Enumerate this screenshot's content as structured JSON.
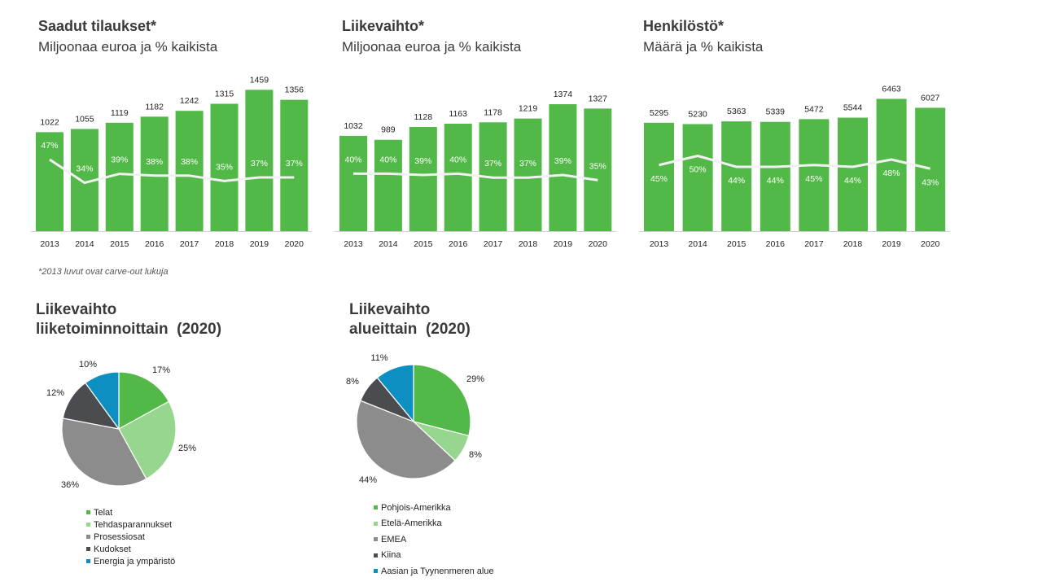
{
  "bar_charts": [
    {
      "title": "Saadut tilaukset*",
      "subtitle": "Miljoonaa euroa ja % kaikista"
    },
    {
      "title": "Liikevaihto*",
      "subtitle": "Miljoonaa euroa ja % kaikista"
    },
    {
      "title": "Henkilöstö*",
      "subtitle": "Määrä ja % kaikista"
    }
  ],
  "footnote": "*2013 luvut ovat carve-out lukuja",
  "pie_charts": [
    {
      "title_line1": "Liikevaihto",
      "title_line2": "liiketoiminnoittain  (2020)"
    },
    {
      "title_line1": "Liikevaihto",
      "title_line2": "alueittain  (2020)"
    }
  ],
  "colors": {
    "bar": "#52b848",
    "line": "#f1f1f1",
    "axis": "#d0d0d0",
    "green": "#52b848",
    "light_green": "#97d68f",
    "gray": "#8c8c8c",
    "dark": "#4a4c4f",
    "blue": "#0d8fc1"
  },
  "chart_data": [
    {
      "type": "bar",
      "title": "Saadut tilaukset*",
      "subtitle": "Miljoonaa euroa ja % kaikista",
      "categories": [
        "2013",
        "2014",
        "2015",
        "2016",
        "2017",
        "2018",
        "2019",
        "2020"
      ],
      "values": [
        1022,
        1055,
        1119,
        1182,
        1242,
        1315,
        1459,
        1356
      ],
      "line_labels": [
        "47%",
        "34%",
        "39%",
        "38%",
        "38%",
        "35%",
        "37%",
        "37%"
      ],
      "line_values": [
        47,
        34,
        39,
        38,
        38,
        35,
        37,
        37
      ]
    },
    {
      "type": "bar",
      "title": "Liikevaihto*",
      "subtitle": "Miljoonaa euroa ja % kaikista",
      "categories": [
        "2013",
        "2014",
        "2015",
        "2016",
        "2017",
        "2018",
        "2019",
        "2020"
      ],
      "values": [
        1032,
        989,
        1128,
        1163,
        1178,
        1219,
        1374,
        1327
      ],
      "line_labels": [
        "40%",
        "40%",
        "39%",
        "40%",
        "37%",
        "37%",
        "39%",
        "35%"
      ],
      "line_values": [
        40,
        40,
        39,
        40,
        37,
        37,
        39,
        35
      ]
    },
    {
      "type": "bar",
      "title": "Henkilöstö*",
      "subtitle": "Määrä ja % kaikista",
      "categories": [
        "2013",
        "2014",
        "2015",
        "2016",
        "2017",
        "2018",
        "2019",
        "2020"
      ],
      "values": [
        5295,
        5230,
        5363,
        5339,
        5472,
        5544,
        6463,
        6027
      ],
      "line_labels": [
        "45%",
        "50%",
        "44%",
        "44%",
        "45%",
        "44%",
        "48%",
        "43%"
      ],
      "line_values": [
        45,
        50,
        44,
        44,
        45,
        44,
        48,
        43
      ]
    },
    {
      "type": "pie",
      "title": "Liikevaihto liiketoiminnoittain  (2020)",
      "labels": [
        "Telat",
        "Tehdasparannukset",
        "Prosessiosat",
        "Kudokset",
        "Energia ja ympäristö"
      ],
      "values": [
        17,
        25,
        36,
        12,
        10
      ],
      "value_labels": [
        "17%",
        "25%",
        "36%",
        "12%",
        "10%"
      ],
      "colors": [
        "#52b848",
        "#97d68f",
        "#8c8c8c",
        "#4a4c4f",
        "#0d8fc1"
      ]
    },
    {
      "type": "pie",
      "title": "Liikevaihto alueittain  (2020)",
      "labels": [
        "Pohjois-Amerikka",
        "Etelä-Amerikka",
        "EMEA",
        "Kiina",
        "Aasian ja Tyynenmeren alue"
      ],
      "values": [
        29,
        8,
        44,
        8,
        11
      ],
      "value_labels": [
        "29%",
        "8%",
        "44%",
        "8%",
        "11%"
      ],
      "colors": [
        "#52b848",
        "#97d68f",
        "#8c8c8c",
        "#4a4c4f",
        "#0d8fc1"
      ]
    }
  ]
}
